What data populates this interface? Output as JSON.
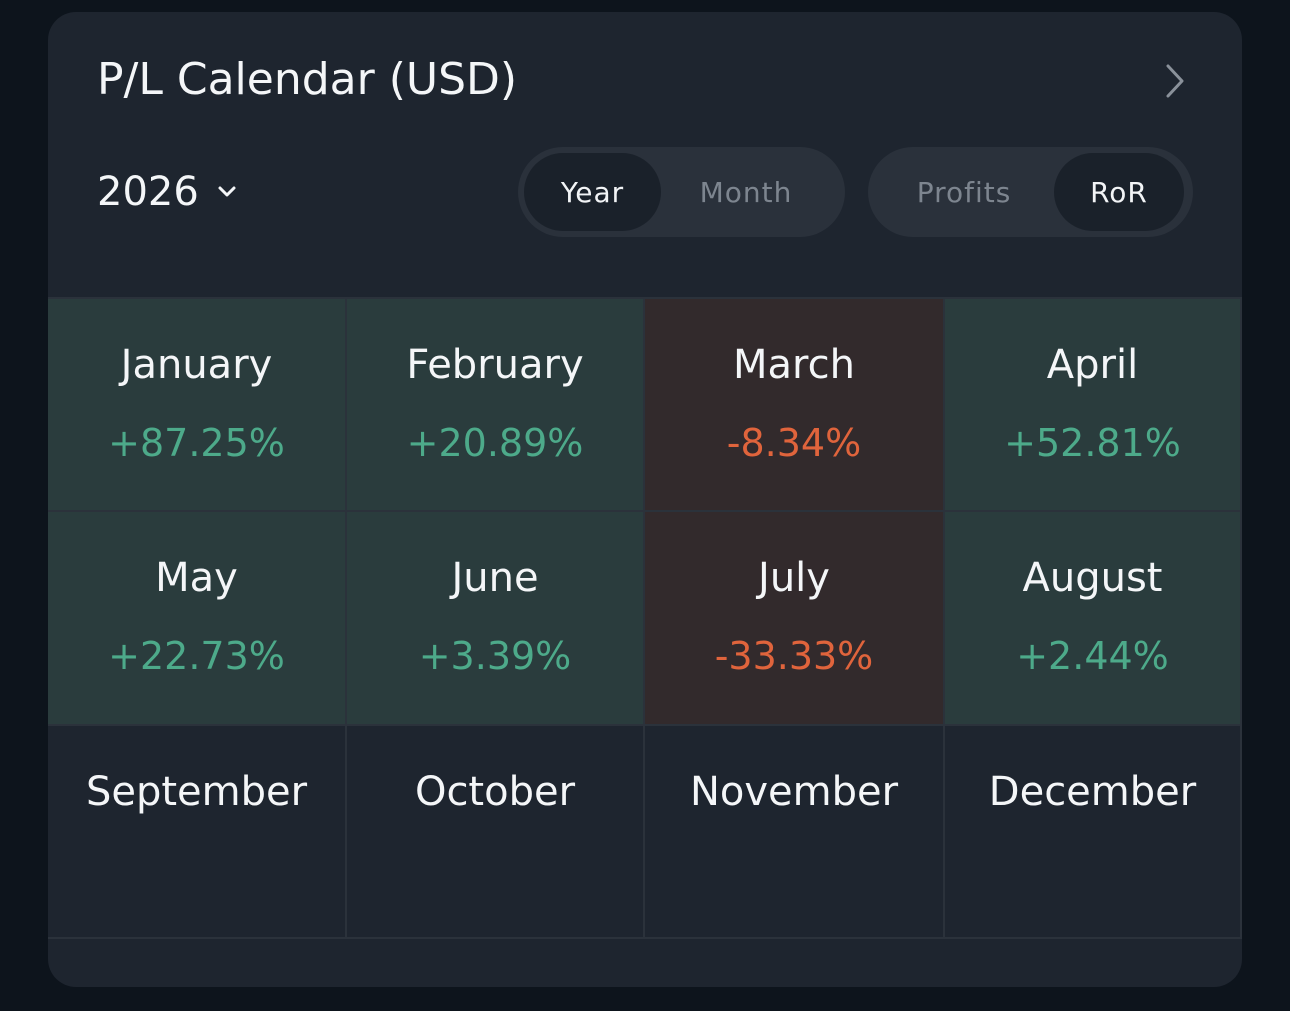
{
  "header": {
    "title": "P/L Calendar (USD)",
    "year": "2026"
  },
  "toggles": [
    {
      "options": [
        "Year",
        "Month"
      ],
      "active": 0
    },
    {
      "options": [
        "Profits",
        "RoR"
      ],
      "active": 1
    }
  ],
  "months": [
    {
      "name": "January",
      "value": "+87.25%"
    },
    {
      "name": "February",
      "value": "+20.89%"
    },
    {
      "name": "March",
      "value": "-8.34%"
    },
    {
      "name": "April",
      "value": "+52.81%"
    },
    {
      "name": "May",
      "value": "+22.73%"
    },
    {
      "name": "June",
      "value": "+3.39%"
    },
    {
      "name": "July",
      "value": "-33.33%"
    },
    {
      "name": "August",
      "value": "+2.44%"
    },
    {
      "name": "September"
    },
    {
      "name": "October"
    },
    {
      "name": "November"
    },
    {
      "name": "December"
    }
  ]
}
